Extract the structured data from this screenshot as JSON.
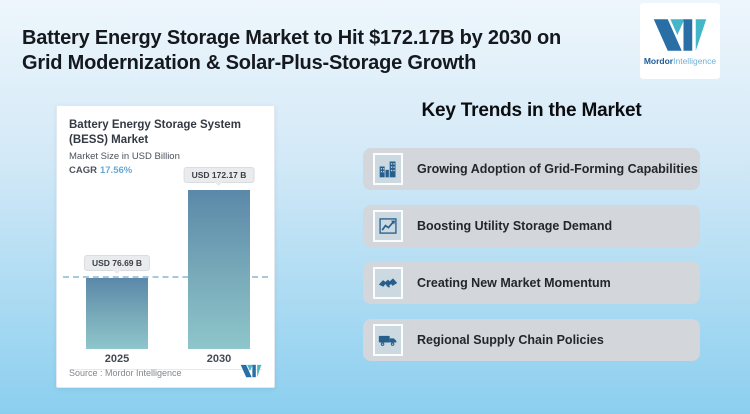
{
  "page": {
    "title_line1": "Battery Energy Storage Market to Hit $172.17B by 2030 on",
    "title_line2": "Grid Modernization & Solar-Plus-Storage Growth"
  },
  "brand": {
    "name_bold": "Mordor",
    "name_light": "Intelligence",
    "logo_icon": "mordor-m-monogram"
  },
  "chart_card": {
    "title": "Battery Energy Storage System (BESS) Market",
    "subtitle": "Market Size in USD Billion",
    "cagr_label": "CAGR",
    "cagr_value": "17.56%",
    "source": "Source :  Mordor Intelligence"
  },
  "chart_data": {
    "type": "bar",
    "title": "Battery Energy Storage System (BESS) Market",
    "ylabel": "Market Size in USD Billion",
    "categories": [
      "2025",
      "2030"
    ],
    "values": [
      76.69,
      172.17
    ],
    "value_labels": [
      "USD 76.69 B",
      "USD 172.17 B"
    ],
    "cagr": "17.56%",
    "ylim": [
      0,
      190
    ],
    "grid": "single horizontal dashed reference line at 2025 value",
    "legend": "none",
    "bar_gradient_top": "#5b88a9",
    "bar_gradient_bottom": "#8ec6cb"
  },
  "trends": {
    "heading": "Key Trends in the Market",
    "items": [
      {
        "icon": "buildings-icon",
        "label": "Growing Adoption of Grid-Forming Capabilities"
      },
      {
        "icon": "line-chart-icon",
        "label": "Boosting Utility Storage Demand"
      },
      {
        "icon": "handshake-icon",
        "label": "Creating New Market Momentum"
      },
      {
        "icon": "truck-icon",
        "label": "Regional Supply Chain Policies"
      }
    ]
  },
  "colors": {
    "background_top": "#eef6fc",
    "background_bottom": "#8bcfef",
    "brand_dark_blue": "#2a6ea6",
    "brand_teal": "#43b6c9",
    "cagr_value": "#68a9d6",
    "trend_row_bg": "#d3d6da",
    "trend_icon": "#275f8c",
    "dashed_line": "#a9c8da"
  }
}
